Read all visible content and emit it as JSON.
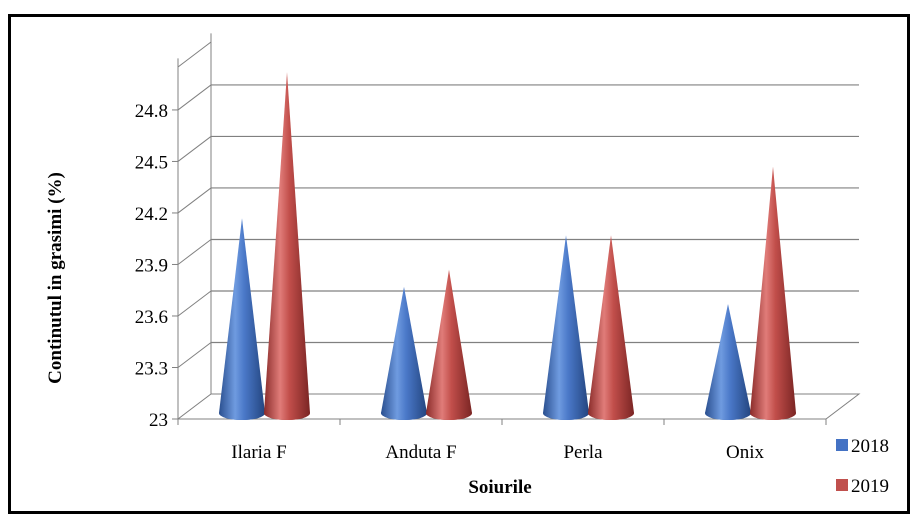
{
  "chart_data": {
    "type": "bar",
    "style": "3d-cone",
    "categories": [
      "Ilaria F",
      "Anduta F",
      "Perla",
      "Onix"
    ],
    "series": [
      {
        "name": "2018",
        "values": [
          24.1,
          23.7,
          24.0,
          23.6
        ],
        "color": "#4472C4"
      },
      {
        "name": "2019",
        "values": [
          24.95,
          23.8,
          24.0,
          24.4
        ],
        "color": "#C0504D"
      }
    ],
    "xlabel": "Soiurile",
    "ylabel": "Continutul in grasimi (%)",
    "ylim": [
      23,
      25.1
    ],
    "yticks": [
      "23",
      "23.3",
      "23.6",
      "23.9",
      "24.2",
      "24.5",
      "24.8"
    ],
    "grid": true,
    "legend_position": "bottom-right"
  }
}
